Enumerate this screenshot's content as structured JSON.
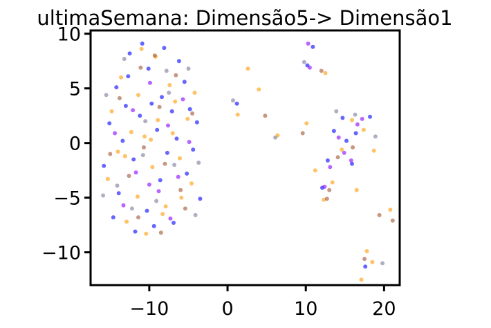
{
  "chart_data": {
    "type": "scatter",
    "title": "ultimaSemana: Dimensão5-> Dimensão1",
    "xlabel": "",
    "ylabel": "",
    "xlim": [
      -17.5,
      22
    ],
    "ylim": [
      -13,
      10.3
    ],
    "x_ticks": [
      -10,
      0,
      10,
      20
    ],
    "x_tick_labels": [
      "−10",
      "0",
      "10",
      "20"
    ],
    "y_ticks": [
      10,
      5,
      0,
      -5,
      -10
    ],
    "y_tick_labels": [
      "10",
      "5",
      "0",
      "−5",
      "−10"
    ],
    "grid": false,
    "legend": "none",
    "colors": [
      "#0000ff",
      "#ff9900",
      "#8800ff",
      "#a0522d",
      "#7a7a9a"
    ],
    "series": [
      {
        "values": [
          [
            -14.2,
            5.1
          ],
          [
            -12.5,
            8.2
          ],
          [
            -10.1,
            6.8
          ],
          [
            -8.4,
            4.2
          ],
          [
            -6.2,
            7.5
          ],
          [
            -4.8,
            3.1
          ],
          [
            -15.1,
            1.8
          ],
          [
            -13.0,
            3.4
          ],
          [
            -11.2,
            2.5
          ],
          [
            -9.0,
            1.2
          ],
          [
            -7.1,
            2.9
          ],
          [
            -5.5,
            5.6
          ],
          [
            -3.9,
            1.9
          ],
          [
            -15.8,
            -2.1
          ],
          [
            -13.9,
            -4.6
          ],
          [
            -12.0,
            -1.5
          ],
          [
            -10.3,
            -6.2
          ],
          [
            -8.6,
            -3.4
          ],
          [
            -6.9,
            -7.3
          ],
          [
            -5.2,
            -2.8
          ],
          [
            -3.5,
            -5.1
          ],
          [
            -11.8,
            -8.1
          ],
          [
            -9.4,
            -7.6
          ],
          [
            -7.7,
            -0.9
          ],
          [
            -4.4,
            -0.6
          ],
          [
            -14.6,
            -6.8
          ],
          [
            -12.7,
            6.1
          ],
          [
            -10.9,
            9.1
          ],
          [
            -8.1,
            8.7
          ],
          [
            -6.5,
            0.4
          ],
          [
            -9.7,
            3.6
          ],
          [
            -13.4,
            0.2
          ],
          [
            1.2,
            3.6
          ],
          [
            10.2,
            7.1
          ],
          [
            10.9,
            8.8
          ],
          [
            12.8,
            -1.6
          ],
          [
            14.7,
            2.3
          ],
          [
            15.9,
            -1.9
          ],
          [
            16.4,
            0.9
          ],
          [
            18.2,
            2.4
          ],
          [
            17.6,
            -11.3
          ],
          [
            12.1,
            -4.1
          ],
          [
            13.6,
            1.1
          ],
          [
            15.2,
            0.2
          ]
        ]
      },
      {
        "values": [
          [
            -13.6,
            6.0
          ],
          [
            -11.4,
            4.4
          ],
          [
            -9.2,
            7.9
          ],
          [
            -7.4,
            5.3
          ],
          [
            -5.1,
            2.2
          ],
          [
            -14.8,
            2.9
          ],
          [
            -12.3,
            1.0
          ],
          [
            -10.6,
            0.6
          ],
          [
            -8.9,
            2.1
          ],
          [
            -6.7,
            3.8
          ],
          [
            -4.2,
            4.6
          ],
          [
            -15.3,
            -3.3
          ],
          [
            -13.1,
            -1.2
          ],
          [
            -11.5,
            -4.9
          ],
          [
            -9.6,
            -2.2
          ],
          [
            -7.9,
            -5.8
          ],
          [
            -6.1,
            -1.4
          ],
          [
            -4.6,
            -3.7
          ],
          [
            -12.9,
            -7.2
          ],
          [
            -10.4,
            -8.3
          ],
          [
            -8.3,
            -6.5
          ],
          [
            -5.9,
            -5.0
          ],
          [
            -9.8,
            0.3
          ],
          [
            -7.0,
            0.9
          ],
          [
            -11.0,
            8.6
          ],
          [
            -14.0,
            -0.8
          ],
          [
            2.6,
            6.8
          ],
          [
            4.0,
            4.9
          ],
          [
            1.3,
            2.6
          ],
          [
            6.4,
            0.7
          ],
          [
            10.1,
            1.8
          ],
          [
            12.5,
            6.4
          ],
          [
            15.9,
            2.1
          ],
          [
            17.4,
            1.2
          ],
          [
            18.7,
            -0.7
          ],
          [
            20.8,
            -6.1
          ],
          [
            18.5,
            -10.9
          ],
          [
            17.8,
            -9.9
          ],
          [
            13.4,
            -3.6
          ],
          [
            16.5,
            -4.3
          ],
          [
            11.2,
            -2.5
          ],
          [
            12.3,
            -5.2
          ],
          [
            14.6,
            -0.6
          ],
          [
            17.1,
            -12.5
          ]
        ]
      },
      {
        "values": [
          [
            -12.1,
            3.0
          ],
          [
            -9.9,
            5.5
          ],
          [
            -7.6,
            1.6
          ],
          [
            -5.7,
            4.0
          ],
          [
            -14.4,
            0.9
          ],
          [
            -11.7,
            -2.7
          ],
          [
            -8.8,
            -4.4
          ],
          [
            -6.3,
            -3.1
          ],
          [
            -13.3,
            -5.7
          ],
          [
            -10.0,
            -3.8
          ],
          [
            -7.3,
            -6.9
          ],
          [
            -4.9,
            0.1
          ],
          [
            10.3,
            9.1
          ],
          [
            10.5,
            6.9
          ],
          [
            14.9,
            -0.9
          ],
          [
            15.8,
            -1.6
          ],
          [
            16.6,
            1.7
          ],
          [
            12.4,
            -4.0
          ],
          [
            13.1,
            -2.2
          ],
          [
            14.2,
            0.5
          ],
          [
            17.2,
            2.2
          ]
        ]
      },
      {
        "values": [
          [
            -13.8,
            4.1
          ],
          [
            -11.1,
            6.9
          ],
          [
            -8.7,
            3.3
          ],
          [
            -6.6,
            6.2
          ],
          [
            -4.5,
            2.7
          ],
          [
            -15.0,
            -1.0
          ],
          [
            -12.6,
            -3.0
          ],
          [
            -10.7,
            -0.4
          ],
          [
            -8.0,
            -1.9
          ],
          [
            -6.0,
            -4.3
          ],
          [
            -11.4,
            -6.8
          ],
          [
            -8.5,
            -8.2
          ],
          [
            -5.4,
            -6.0
          ],
          [
            -9.3,
            8.0
          ],
          [
            4.8,
            2.5
          ],
          [
            9.6,
            0.9
          ],
          [
            12.0,
            6.6
          ],
          [
            14.1,
            -1.3
          ],
          [
            16.0,
            -0.4
          ],
          [
            17.5,
            -10.6
          ],
          [
            19.4,
            -6.6
          ],
          [
            21.1,
            -7.1
          ],
          [
            13.0,
            -4.3
          ],
          [
            12.7,
            -5.1
          ]
        ]
      },
      {
        "values": [
          [
            -15.5,
            4.4
          ],
          [
            -13.2,
            7.7
          ],
          [
            -10.5,
            2.0
          ],
          [
            -7.8,
            6.6
          ],
          [
            -5.0,
            6.8
          ],
          [
            -3.7,
            -1.8
          ],
          [
            -15.9,
            -4.8
          ],
          [
            -14.1,
            -3.9
          ],
          [
            -12.2,
            -6.0
          ],
          [
            -9.1,
            -5.3
          ],
          [
            -6.8,
            -2.0
          ],
          [
            -4.1,
            -6.6
          ],
          [
            -10.8,
            -1.1
          ],
          [
            -7.5,
            4.6
          ],
          [
            0.7,
            3.9
          ],
          [
            6.1,
            0.5
          ],
          [
            9.8,
            7.4
          ],
          [
            13.9,
            2.9
          ],
          [
            16.3,
            2.6
          ],
          [
            18.9,
            0.6
          ],
          [
            19.8,
            -11.0
          ]
        ]
      }
    ]
  }
}
